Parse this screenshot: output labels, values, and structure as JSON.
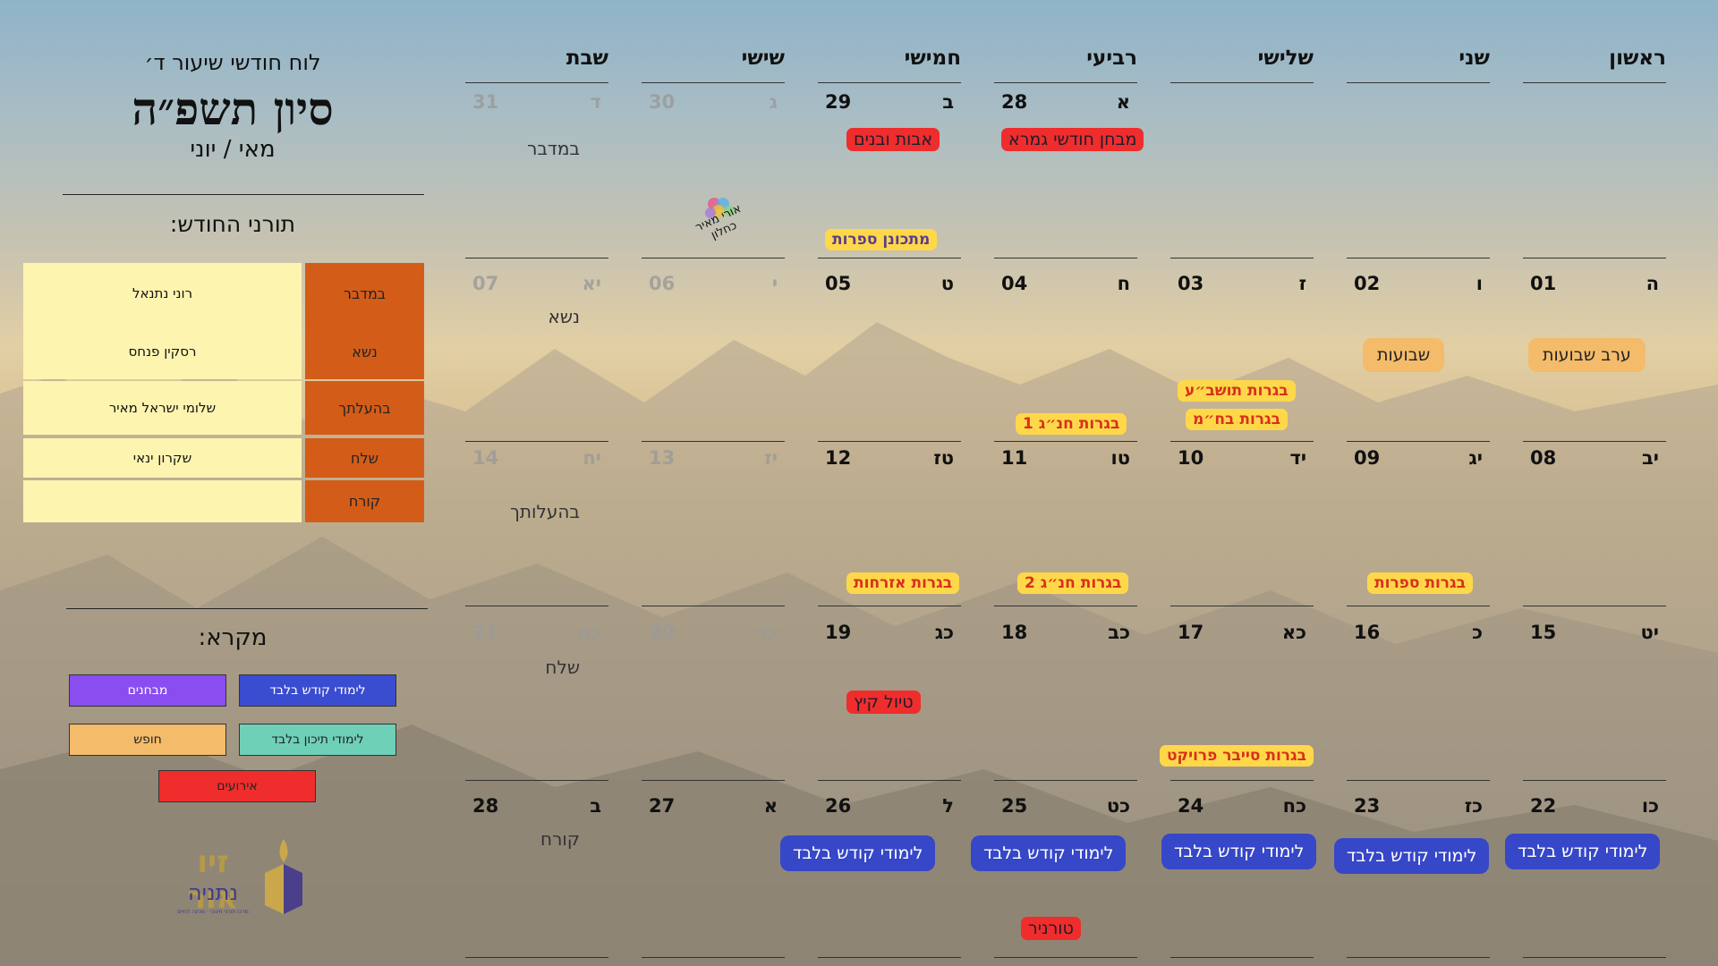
{
  "colors": {
    "duty_parsha_bg": "#d35c18",
    "duty_name_bg": "#fdf4b0",
    "legend_kodesh": "#3a4cd0",
    "legend_mivchanim": "#8a4df0",
    "legend_tichon": "#6fd0b8",
    "legend_chofesh": "#f4bb6a",
    "legend_eruim": "#ef2d2d"
  },
  "sidebar": {
    "subtitle": "לוח חודשי שיעור ד׳",
    "month": "סיון תשפ״ה",
    "gregorian": "מאי / יוני",
    "duty_title": "תורני החודש:",
    "duty": [
      {
        "parsha": "במדבר",
        "name": "רוני נתנאל"
      },
      {
        "parsha": "נשא",
        "name": "רסקין פנחס"
      },
      {
        "parsha": "בהעלתך",
        "name": "שלומי ישראל מאיר"
      },
      {
        "parsha": "שלח",
        "name": "שקרון ינאי"
      },
      {
        "parsha": "קורח",
        "name": ""
      }
    ],
    "legend_title": "מקרא:",
    "legend": {
      "kodesh": "לימודי קודש בלבד",
      "mivchanim": "מבחנים",
      "tichon": "לימודי תיכון בלבד",
      "chofesh": "חופש",
      "eruim": "אירועים"
    },
    "logo": {
      "line1": "זיו אור",
      "line2": "נתניה",
      "tagline": "מרכז תורני חינוכי · מכינה לחיים"
    }
  },
  "calendar": {
    "headers": [
      "ראשון",
      "שני",
      "שלישי",
      "רביעי",
      "חמישי",
      "שישי",
      "שבת"
    ],
    "weeks": [
      {
        "days": [
          {
            "greg": "",
            "heb": ""
          },
          {
            "greg": "",
            "heb": ""
          },
          {
            "greg": "",
            "heb": ""
          },
          {
            "greg": "28",
            "heb": "א"
          },
          {
            "greg": "29",
            "heb": "ב"
          },
          {
            "greg": "30",
            "heb": "ג",
            "faded": true
          },
          {
            "greg": "31",
            "heb": "ד",
            "faded": true
          }
        ],
        "parsha": "במדבר"
      },
      {
        "days": [
          {
            "greg": "01",
            "heb": "ה"
          },
          {
            "greg": "02",
            "heb": "ו"
          },
          {
            "greg": "03",
            "heb": "ז"
          },
          {
            "greg": "04",
            "heb": "ח"
          },
          {
            "greg": "05",
            "heb": "ט"
          },
          {
            "greg": "06",
            "heb": "י",
            "faded": true
          },
          {
            "greg": "07",
            "heb": "יא",
            "faded": true
          }
        ],
        "parsha": "נשא"
      },
      {
        "days": [
          {
            "greg": "08",
            "heb": "יב"
          },
          {
            "greg": "09",
            "heb": "יג"
          },
          {
            "greg": "10",
            "heb": "יד"
          },
          {
            "greg": "11",
            "heb": "טו"
          },
          {
            "greg": "12",
            "heb": "טז"
          },
          {
            "greg": "13",
            "heb": "יז",
            "faded": true
          },
          {
            "greg": "14",
            "heb": "יח",
            "faded": true
          }
        ],
        "parsha": "בהעלותך"
      },
      {
        "days": [
          {
            "greg": "15",
            "heb": "יט"
          },
          {
            "greg": "16",
            "heb": "כ"
          },
          {
            "greg": "17",
            "heb": "כא"
          },
          {
            "greg": "18",
            "heb": "כב"
          },
          {
            "greg": "19",
            "heb": "כג"
          },
          {
            "greg": "20",
            "heb": "כד",
            "faded": true
          },
          {
            "greg": "21",
            "heb": "כה",
            "faded": true
          }
        ],
        "parsha": "שלח"
      },
      {
        "days": [
          {
            "greg": "22",
            "heb": "כו"
          },
          {
            "greg": "23",
            "heb": "כז"
          },
          {
            "greg": "24",
            "heb": "כח"
          },
          {
            "greg": "25",
            "heb": "כט"
          },
          {
            "greg": "26",
            "heb": "ל"
          },
          {
            "greg": "27",
            "heb": "א"
          },
          {
            "greg": "28",
            "heb": "ב"
          }
        ],
        "parsha": "קורח"
      }
    ],
    "events": {
      "avot_uvanim": "אבות ובנים",
      "mivchan_gemara": "מבחן חודשי גמרא",
      "mitkonen_sifrut": "מתכונן ספרות",
      "erev_shavuot": "ערב שבועות",
      "shavuot": "שבועות",
      "bagrut_toshba": "בגרות תושב״ע",
      "bagrut_tanach_1": "בגרות חנ״ג 1",
      "bagrut_bachm": "בגרות בח״מ",
      "bagrut_sifrut": "בגרות ספרות",
      "bagrut_tanach_2": "בגרות חנ״ג 2",
      "bagrut_ezrachut": "בגרות אזרחות",
      "tiyul_kayitz": "טיול קיץ",
      "bagrut_cyber": "בגרות סייבר פרויקט",
      "kodesh_only": "לימודי קודש בלבד",
      "tournament": "טורניר"
    },
    "stamp_text": "אורי מאיר כחלון"
  }
}
